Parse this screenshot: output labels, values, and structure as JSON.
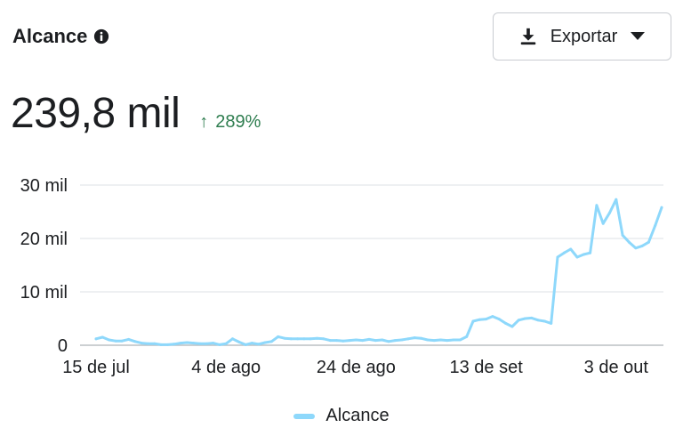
{
  "header": {
    "title": "Alcance",
    "info_icon": "info-circle-icon"
  },
  "export_button": {
    "label": "Exportar",
    "icon": "download-icon",
    "caret": "caret-down-icon"
  },
  "summary": {
    "value": "239,8 mil",
    "change": "289%",
    "change_direction": "up",
    "change_color": "#2e7d4f"
  },
  "chart_data": {
    "type": "line",
    "title": "",
    "xlabel": "",
    "ylabel": "",
    "ylim": [
      0,
      30000
    ],
    "y_ticks": [
      {
        "value": 0,
        "label": "0"
      },
      {
        "value": 10000,
        "label": "10 mil"
      },
      {
        "value": 20000,
        "label": "20 mil"
      },
      {
        "value": 30000,
        "label": "30 mil"
      }
    ],
    "x_ticks": [
      {
        "date": "2023-07-15",
        "label": "15 de jul"
      },
      {
        "date": "2023-08-04",
        "label": "4 de ago"
      },
      {
        "date": "2023-08-24",
        "label": "24 de ago"
      },
      {
        "date": "2023-09-13",
        "label": "13 de set"
      },
      {
        "date": "2023-10-03",
        "label": "3 de out"
      }
    ],
    "grid": true,
    "legend": "bottom-center",
    "series": [
      {
        "name": "Alcance",
        "color": "#8ed8fb",
        "points": [
          [
            "2023-07-15",
            1200
          ],
          [
            "2023-07-16",
            1500
          ],
          [
            "2023-07-17",
            1000
          ],
          [
            "2023-07-18",
            800
          ],
          [
            "2023-07-19",
            800
          ],
          [
            "2023-07-20",
            1100
          ],
          [
            "2023-07-21",
            700
          ],
          [
            "2023-07-22",
            400
          ],
          [
            "2023-07-23",
            300
          ],
          [
            "2023-07-24",
            300
          ],
          [
            "2023-07-25",
            100
          ],
          [
            "2023-07-26",
            100
          ],
          [
            "2023-07-27",
            200
          ],
          [
            "2023-07-28",
            400
          ],
          [
            "2023-07-29",
            500
          ],
          [
            "2023-07-30",
            400
          ],
          [
            "2023-07-31",
            300
          ],
          [
            "2023-08-01",
            300
          ],
          [
            "2023-08-02",
            400
          ],
          [
            "2023-08-03",
            100
          ],
          [
            "2023-08-04",
            300
          ],
          [
            "2023-08-05",
            1200
          ],
          [
            "2023-08-06",
            600
          ],
          [
            "2023-08-07",
            100
          ],
          [
            "2023-08-08",
            400
          ],
          [
            "2023-08-09",
            200
          ],
          [
            "2023-08-10",
            500
          ],
          [
            "2023-08-11",
            700
          ],
          [
            "2023-08-12",
            1600
          ],
          [
            "2023-08-13",
            1300
          ],
          [
            "2023-08-14",
            1200
          ],
          [
            "2023-08-15",
            1200
          ],
          [
            "2023-08-16",
            1200
          ],
          [
            "2023-08-17",
            1200
          ],
          [
            "2023-08-18",
            1300
          ],
          [
            "2023-08-19",
            1200
          ],
          [
            "2023-08-20",
            900
          ],
          [
            "2023-08-21",
            900
          ],
          [
            "2023-08-22",
            800
          ],
          [
            "2023-08-23",
            900
          ],
          [
            "2023-08-24",
            1000
          ],
          [
            "2023-08-25",
            900
          ],
          [
            "2023-08-26",
            1100
          ],
          [
            "2023-08-27",
            900
          ],
          [
            "2023-08-28",
            1000
          ],
          [
            "2023-08-29",
            700
          ],
          [
            "2023-08-30",
            900
          ],
          [
            "2023-08-31",
            1000
          ],
          [
            "2023-09-01",
            1200
          ],
          [
            "2023-09-02",
            1400
          ],
          [
            "2023-09-03",
            1300
          ],
          [
            "2023-09-04",
            1000
          ],
          [
            "2023-09-05",
            900
          ],
          [
            "2023-09-06",
            1000
          ],
          [
            "2023-09-07",
            900
          ],
          [
            "2023-09-08",
            1000
          ],
          [
            "2023-09-09",
            1000
          ],
          [
            "2023-09-10",
            1600
          ],
          [
            "2023-09-11",
            4500
          ],
          [
            "2023-09-12",
            4800
          ],
          [
            "2023-09-13",
            4900
          ],
          [
            "2023-09-14",
            5400
          ],
          [
            "2023-09-15",
            4900
          ],
          [
            "2023-09-16",
            4100
          ],
          [
            "2023-09-17",
            3500
          ],
          [
            "2023-09-18",
            4700
          ],
          [
            "2023-09-19",
            5000
          ],
          [
            "2023-09-20",
            5100
          ],
          [
            "2023-09-21",
            4700
          ],
          [
            "2023-09-22",
            4500
          ],
          [
            "2023-09-23",
            4100
          ],
          [
            "2023-09-24",
            16500
          ],
          [
            "2023-09-25",
            17300
          ],
          [
            "2023-09-26",
            18000
          ],
          [
            "2023-09-27",
            16500
          ],
          [
            "2023-09-28",
            17000
          ],
          [
            "2023-09-29",
            17300
          ],
          [
            "2023-09-30",
            26200
          ],
          [
            "2023-10-01",
            22800
          ],
          [
            "2023-10-02",
            24800
          ],
          [
            "2023-10-03",
            27300
          ],
          [
            "2023-10-04",
            20600
          ],
          [
            "2023-10-05",
            19300
          ],
          [
            "2023-10-06",
            18200
          ],
          [
            "2023-10-07",
            18600
          ],
          [
            "2023-10-08",
            19300
          ],
          [
            "2023-10-09",
            22400
          ],
          [
            "2023-10-10",
            25800
          ]
        ]
      }
    ]
  }
}
